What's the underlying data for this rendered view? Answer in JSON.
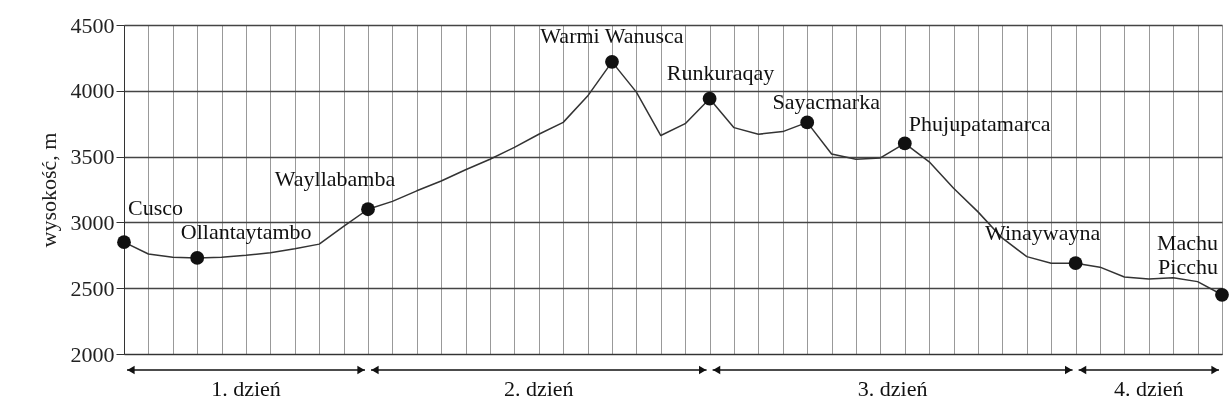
{
  "chart_data": {
    "type": "line",
    "ylabel": "wysokość, m",
    "categories": [
      null,
      null,
      null,
      null,
      null,
      null,
      null,
      null,
      null,
      null,
      null,
      null,
      null,
      null,
      null,
      null,
      null,
      null,
      null,
      null,
      null,
      null,
      null,
      null,
      null,
      null,
      null,
      null,
      null,
      null,
      null,
      null,
      null,
      null,
      null,
      null,
      null,
      null,
      null,
      null,
      null,
      null,
      null,
      null,
      null,
      null
    ],
    "series": [
      {
        "color": "#333333",
        "marker": "none",
        "values": [
          2850,
          2760,
          2735,
          2730,
          2735,
          2750,
          2770,
          2800,
          2835,
          2970,
          3100,
          3160,
          3240,
          3315,
          3400,
          3480,
          3570,
          3670,
          3760,
          3960,
          4220,
          3990,
          3660,
          3750,
          3940,
          3720,
          3670,
          3690,
          3760,
          3520,
          3480,
          3490,
          3600,
          3460,
          3260,
          3080,
          2880,
          2740,
          2690,
          2690,
          2660,
          2585,
          2570,
          2580,
          2550,
          2450
        ]
      },
      {
        "type": "scatter",
        "color": "#111111",
        "marker": "circle",
        "values": [
          2850,
          null,
          null,
          2730,
          null,
          null,
          null,
          null,
          null,
          null,
          3100,
          null,
          null,
          null,
          null,
          null,
          null,
          null,
          null,
          null,
          4220,
          null,
          null,
          null,
          3940,
          null,
          null,
          null,
          3760,
          null,
          null,
          null,
          3600,
          null,
          null,
          null,
          null,
          null,
          null,
          2690,
          null,
          null,
          null,
          null,
          null,
          2450
        ],
        "value_labels": [
          "Cusco",
          null,
          null,
          "Ollantaytambo",
          null,
          null,
          null,
          null,
          null,
          null,
          "Wayllabamba",
          null,
          null,
          null,
          null,
          null,
          null,
          null,
          null,
          null,
          "Warmi Wanusca",
          null,
          null,
          null,
          "Runkuraqay",
          null,
          null,
          null,
          "Sayacmarka",
          null,
          null,
          null,
          "Phujupatamarca",
          null,
          null,
          null,
          null,
          null,
          null,
          "Winaywayna",
          null,
          null,
          null,
          null,
          null,
          "Machu\nPicchu"
        ]
      }
    ],
    "ylim": [
      2000,
      4500
    ],
    "yticks": [
      2000,
      2500,
      3000,
      3500,
      4000,
      4500
    ],
    "grid": true,
    "tick_labels": "y",
    "annotations": [
      "1. dzień",
      "2. dzień",
      "3. dzień",
      "4. dzień"
    ]
  }
}
